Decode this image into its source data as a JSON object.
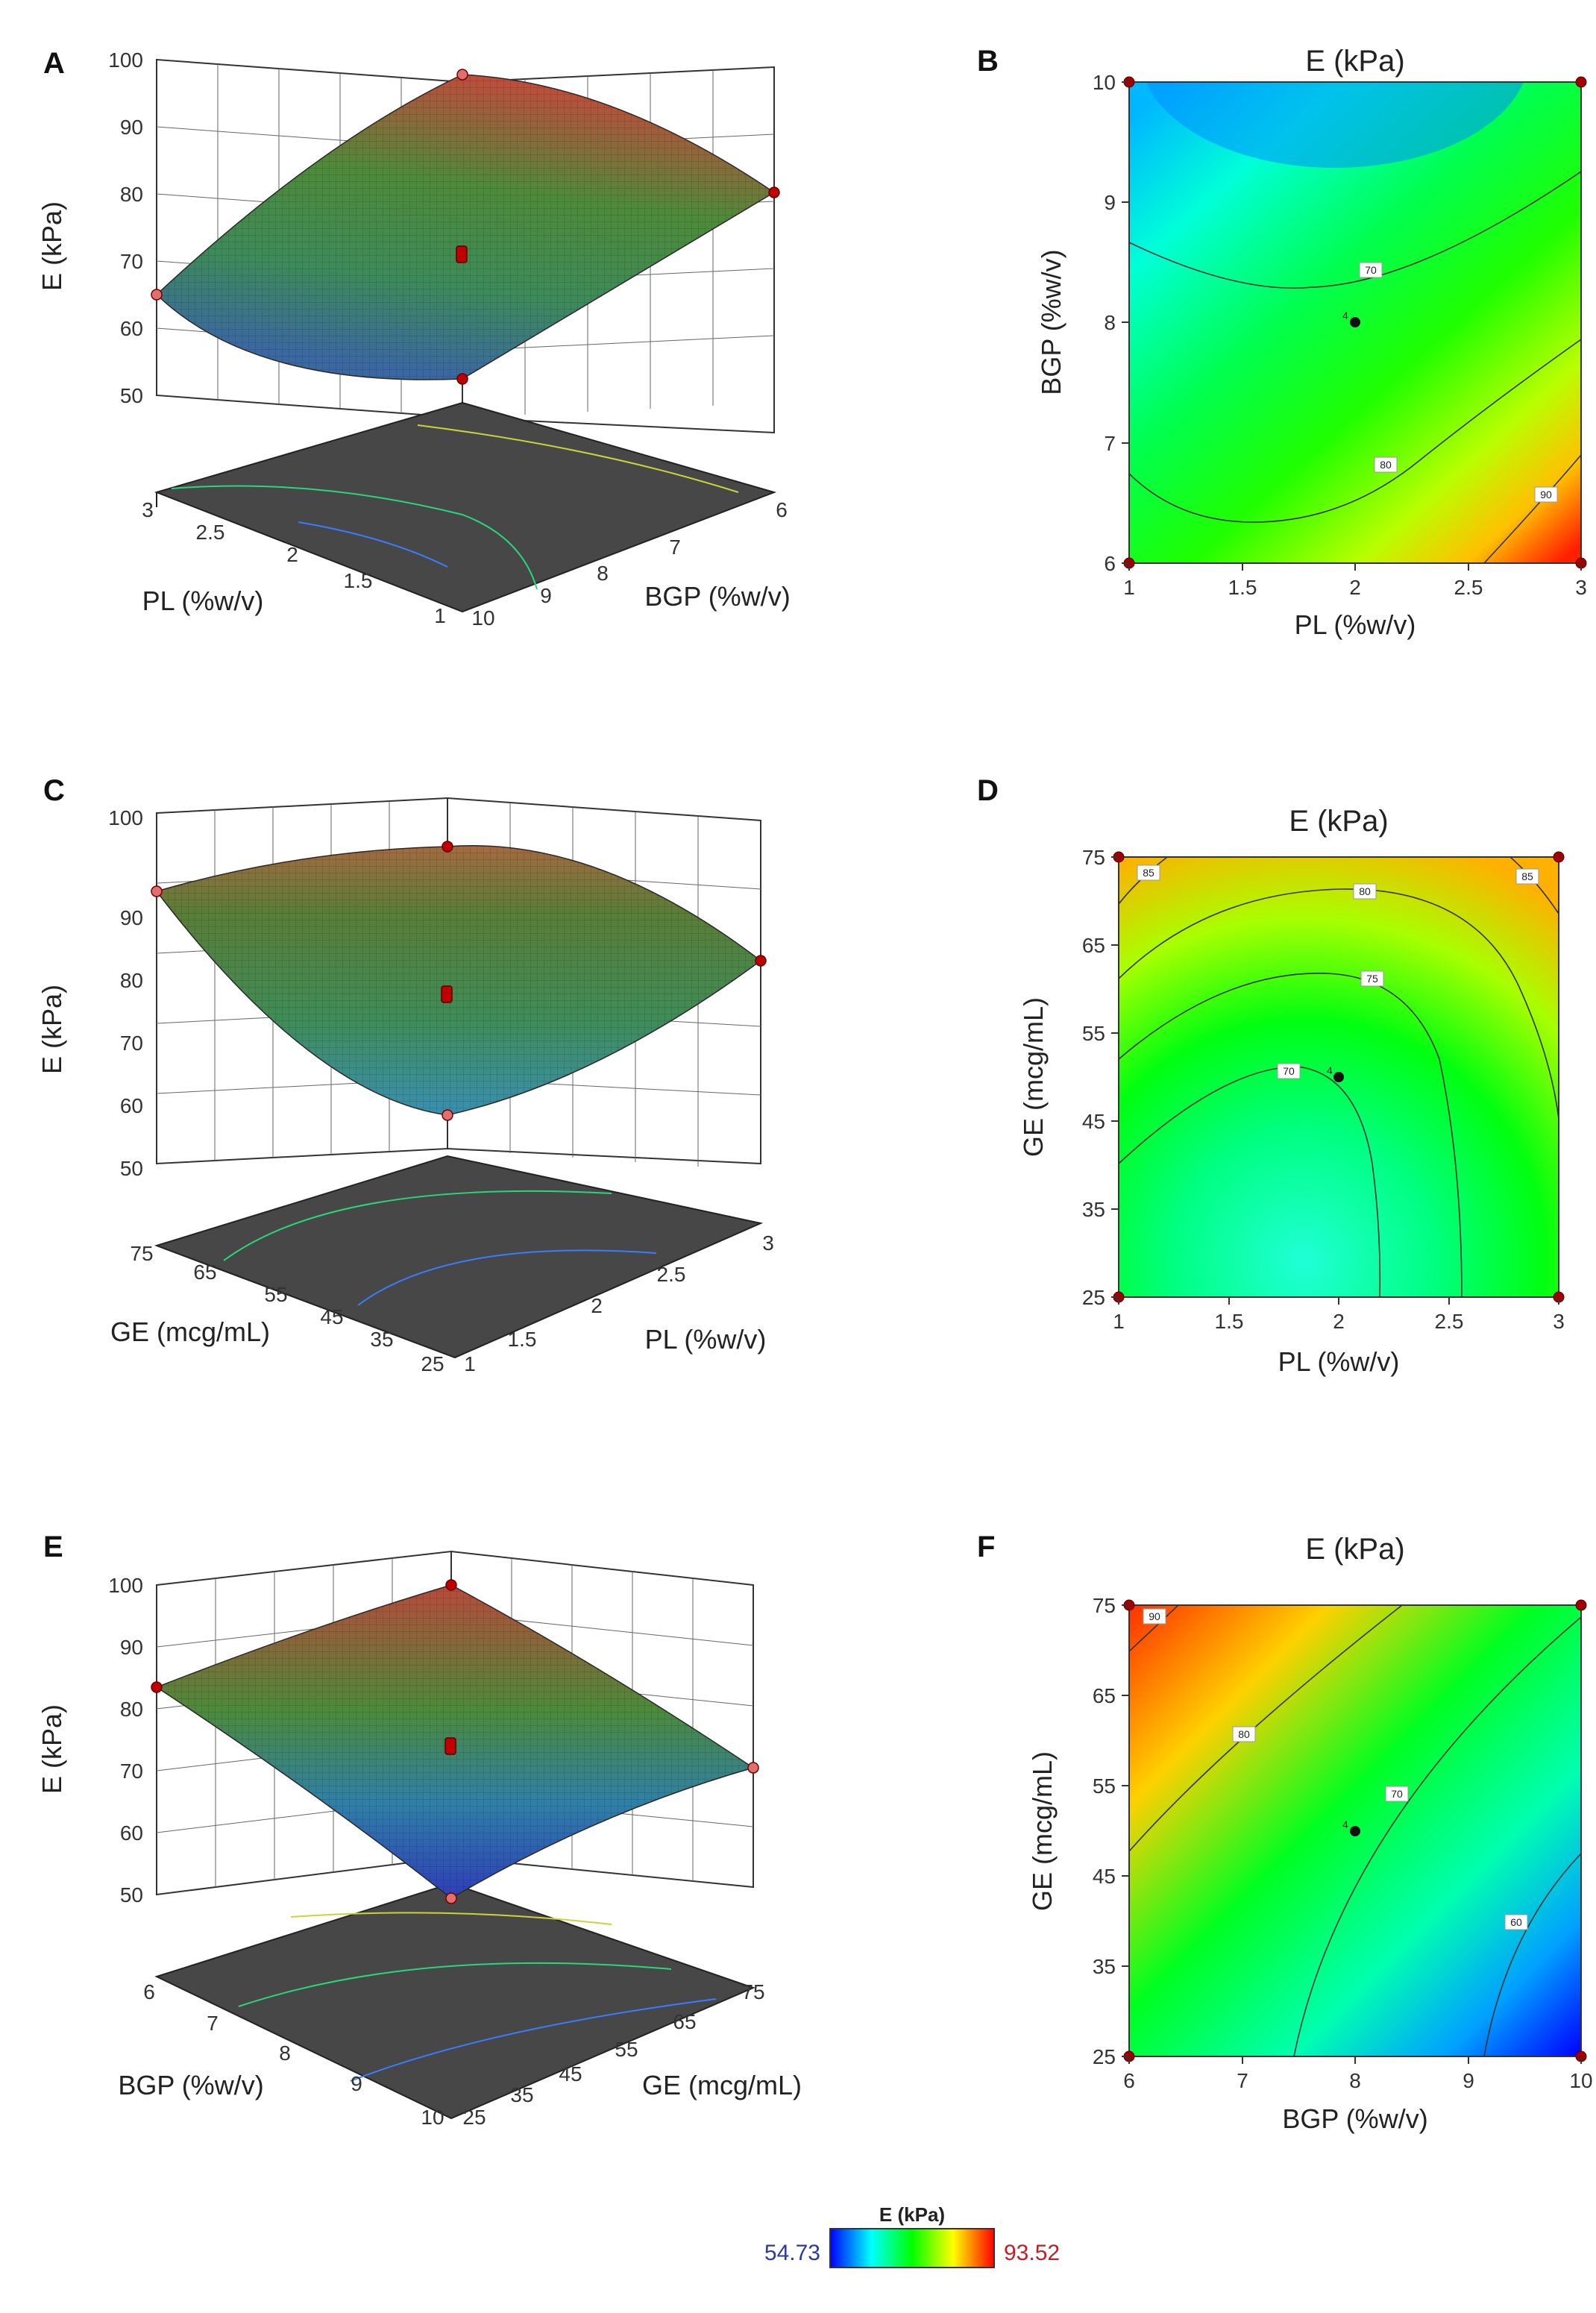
{
  "figure": {
    "colorbar": {
      "title": "E (kPa)",
      "min_label": "54.73",
      "max_label": "93.52",
      "min": 54.73,
      "max": 93.52,
      "colors": [
        "#0000ff",
        "#00ffff",
        "#00ff00",
        "#ffff00",
        "#ff0000"
      ]
    }
  },
  "chart_data": [
    {
      "panel": "A",
      "type": "surface3d",
      "zlabel": "E (kPa)",
      "xlabel": "PL (%w/v)",
      "ylabel": "BGP (%w/v)",
      "z_ticks": [
        "50",
        "60",
        "70",
        "80",
        "90",
        "100"
      ],
      "x_ticks": [
        "3",
        "2.5",
        "2",
        "1.5",
        "1"
      ],
      "y_ticks": [
        "6",
        "7",
        "8",
        "9",
        "10"
      ],
      "zlim": [
        50,
        100
      ],
      "corner_values": [
        {
          "x": 3,
          "y": 10,
          "z": 66
        },
        {
          "x": 3,
          "y": 6,
          "z": 93.5
        },
        {
          "x": 1,
          "y": 6,
          "z": 82
        },
        {
          "x": 1,
          "y": 10,
          "z": 55
        }
      ],
      "center_value": {
        "x": 2,
        "y": 8,
        "z": 71
      }
    },
    {
      "panel": "B",
      "type": "contour",
      "title": "E (kPa)",
      "xlabel": "PL (%w/v)",
      "ylabel": "BGP (%w/v)",
      "xlim": [
        1,
        3
      ],
      "ylim": [
        6,
        10
      ],
      "x_ticks": [
        "1",
        "1.5",
        "2",
        "2.5",
        "3"
      ],
      "y_ticks": [
        "6",
        "7",
        "8",
        "9",
        "10"
      ],
      "contour_labels": [
        "70",
        "80",
        "90"
      ],
      "center_point": {
        "x": 2,
        "y": 8,
        "label": "4"
      },
      "design_points": [
        [
          1,
          6
        ],
        [
          1,
          10
        ],
        [
          3,
          6
        ],
        [
          3,
          10
        ]
      ]
    },
    {
      "panel": "C",
      "type": "surface3d",
      "zlabel": "E (kPa)",
      "xlabel": "GE (mcg/mL)",
      "ylabel": "PL (%w/v)",
      "z_ticks": [
        "50",
        "60",
        "70",
        "80",
        "90",
        "100"
      ],
      "x_ticks": [
        "75",
        "65",
        "55",
        "45",
        "35",
        "25"
      ],
      "y_ticks": [
        "1",
        "1.5",
        "2",
        "2.5",
        "3"
      ],
      "zlim": [
        50,
        100
      ],
      "corner_values": [
        {
          "x": 75,
          "y": 1,
          "z": 88
        },
        {
          "x": 75,
          "y": 3,
          "z": 93
        },
        {
          "x": 25,
          "y": 3,
          "z": 79
        },
        {
          "x": 25,
          "y": 1,
          "z": 66
        }
      ],
      "center_value": {
        "x": 50,
        "y": 2,
        "z": 71
      }
    },
    {
      "panel": "D",
      "type": "contour",
      "title": "E (kPa)",
      "xlabel": "PL (%w/v)",
      "ylabel": "GE (mcg/mL)",
      "xlim": [
        1,
        3
      ],
      "ylim": [
        25,
        75
      ],
      "x_ticks": [
        "1",
        "1.5",
        "2",
        "2.5",
        "3"
      ],
      "y_ticks": [
        "25",
        "35",
        "45",
        "55",
        "65",
        "75"
      ],
      "contour_labels": [
        "85",
        "80",
        "75",
        "70",
        "85"
      ],
      "center_point": {
        "x": 2,
        "y": 50,
        "label": "4"
      },
      "design_points": [
        [
          1,
          25
        ],
        [
          1,
          75
        ],
        [
          3,
          25
        ],
        [
          3,
          75
        ]
      ]
    },
    {
      "panel": "E",
      "type": "surface3d",
      "zlabel": "E (kPa)",
      "xlabel": "BGP (%w/v)",
      "ylabel": "GE (mcg/mL)",
      "z_ticks": [
        "50",
        "60",
        "70",
        "80",
        "90",
        "100"
      ],
      "x_ticks": [
        "6",
        "7",
        "8",
        "9",
        "10"
      ],
      "y_ticks": [
        "25",
        "35",
        "45",
        "55",
        "65",
        "75"
      ],
      "zlim": [
        50,
        100
      ],
      "corner_values": [
        {
          "x": 6,
          "y": 25,
          "z": 77
        },
        {
          "x": 6,
          "y": 75,
          "z": 93.5
        },
        {
          "x": 10,
          "y": 75,
          "z": 69
        },
        {
          "x": 10,
          "y": 25,
          "z": 54.7
        }
      ],
      "center_value": {
        "x": 8,
        "y": 50,
        "z": 71
      }
    },
    {
      "panel": "F",
      "type": "contour",
      "title": "E (kPa)",
      "xlabel": "BGP (%w/v)",
      "ylabel": "GE (mcg/mL)",
      "xlim": [
        6,
        10
      ],
      "ylim": [
        25,
        75
      ],
      "x_ticks": [
        "6",
        "7",
        "8",
        "9",
        "10"
      ],
      "y_ticks": [
        "25",
        "35",
        "45",
        "55",
        "65",
        "75"
      ],
      "contour_labels": [
        "90",
        "80",
        "70",
        "60"
      ],
      "center_point": {
        "x": 8,
        "y": 50,
        "label": "4"
      },
      "design_points": [
        [
          6,
          25
        ],
        [
          6,
          75
        ],
        [
          10,
          25
        ],
        [
          10,
          75
        ]
      ]
    }
  ]
}
